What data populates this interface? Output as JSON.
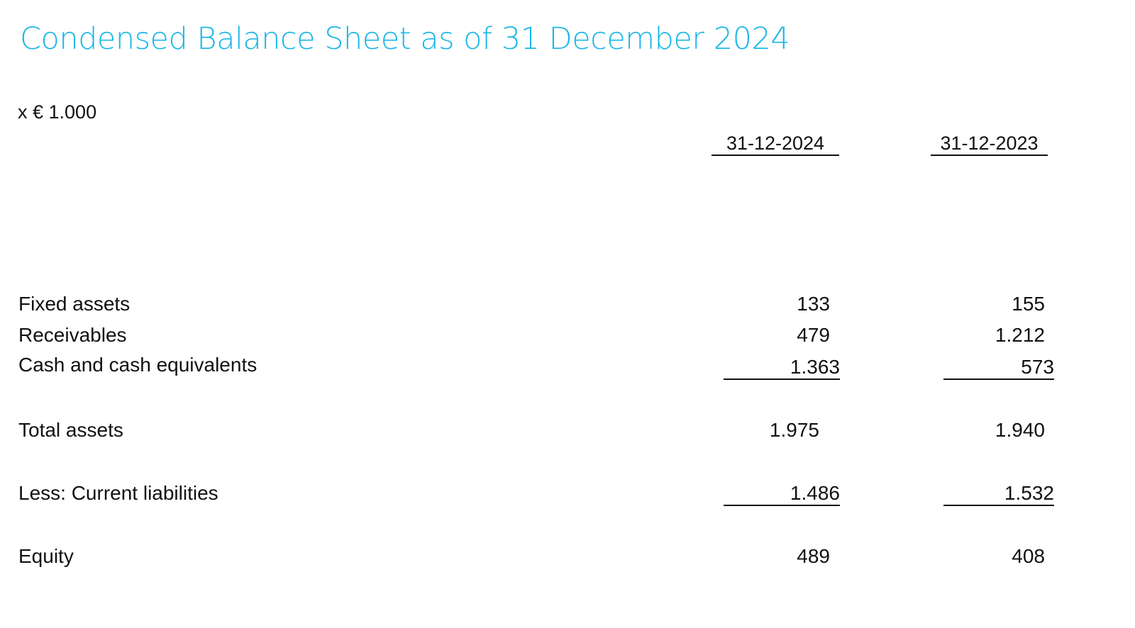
{
  "title": "Condensed Balance Sheet as of 31 December 2024",
  "unit": "x € 1.000",
  "columns": [
    "31-12-2024",
    "31-12-2023"
  ],
  "rows": [
    {
      "label": "Fixed assets",
      "v2024": "133",
      "v2023": "155"
    },
    {
      "label": "Receivables",
      "v2024": "479",
      "v2023": "1.212"
    },
    {
      "label": "Cash and cash equivalents",
      "v2024": "1.363",
      "v2023": "573"
    },
    {
      "label": "Total assets",
      "v2024": "1.975",
      "v2023": "1.940"
    },
    {
      "label": "Less: Current liabilities",
      "v2024": "1.486",
      "v2023": "1.532"
    },
    {
      "label": "Equity",
      "v2024": "489",
      "v2023": "408"
    }
  ],
  "colors": {
    "title": "#1ab7e6",
    "text": "#111111"
  }
}
